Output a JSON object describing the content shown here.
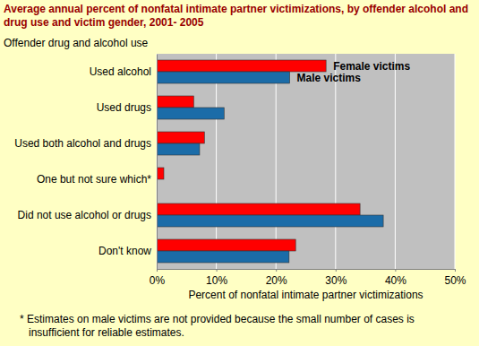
{
  "chart_data": {
    "type": "bar",
    "orientation": "horizontal",
    "title": "Average annual percent of nonfatal intimate partner victimizations, by offender alcohol and drug use and victim gender, 2001- 2005",
    "ylabel": "Offender drug and alcohol use",
    "xlabel": "Percent of nonfatal intimate partner victimizations",
    "annotations": [
      "* Estimates on male victims are not provided because the small number of cases is insufficient for reliable estimates."
    ],
    "categories": [
      "Used alcohol",
      "Used drugs",
      "Used both alcohol and drugs",
      "One but not sure which*",
      "Did not use alcohol or drugs",
      "Don't know"
    ],
    "series": [
      {
        "name": "Female victims",
        "color": "#FF0000",
        "values": [
          28.4,
          6.2,
          8,
          1.2,
          34.1,
          23.3
        ]
      },
      {
        "name": "Male victims",
        "color": "#1B6CA8",
        "values": [
          22.3,
          11.3,
          7.2,
          null,
          38,
          22.2
        ]
      }
    ],
    "xlim": [
      0,
      50
    ],
    "xticks": [
      {
        "value": 0,
        "label": "0%"
      },
      {
        "value": 10,
        "label": "10%"
      },
      {
        "value": 20,
        "label": "20%"
      },
      {
        "value": 30,
        "label": "30%"
      },
      {
        "value": 40,
        "label": "40%"
      },
      {
        "value": 50,
        "label": "50%"
      }
    ],
    "grid": true
  }
}
